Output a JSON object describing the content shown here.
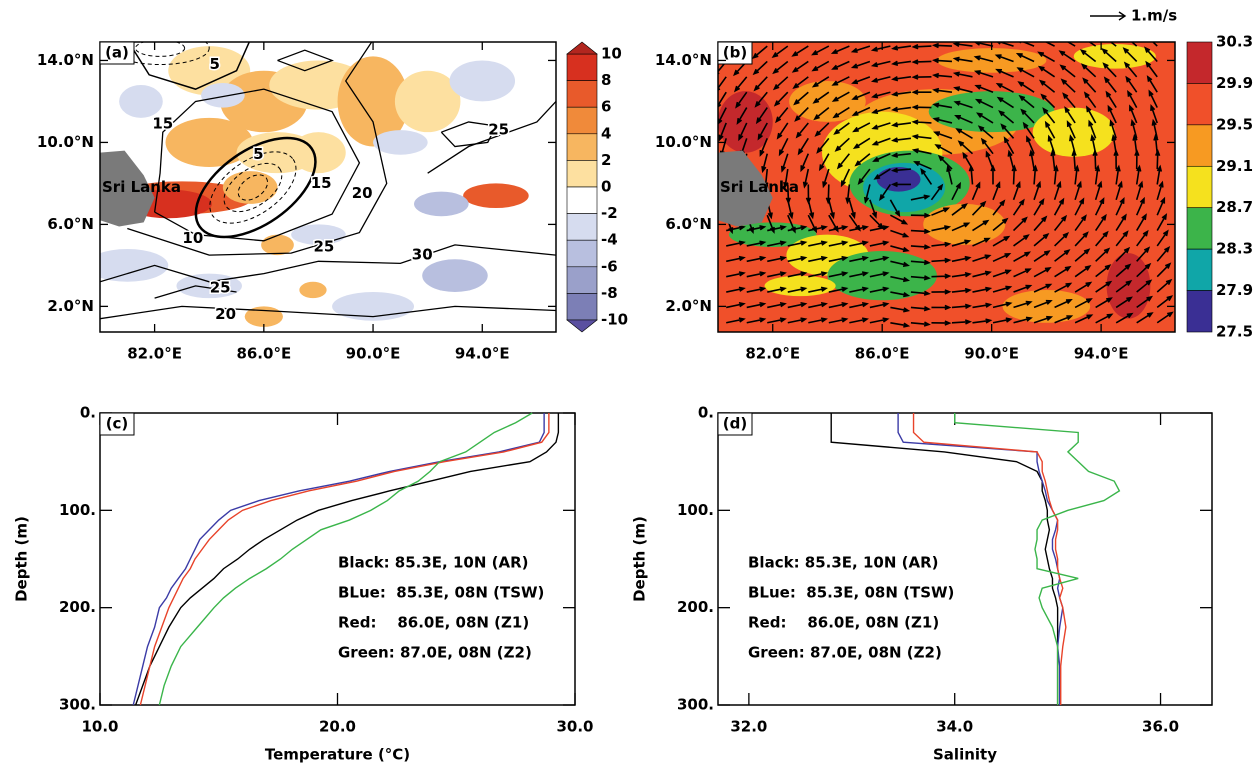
{
  "chart_data": [
    {
      "type": "map",
      "panel_label": "(a)",
      "annotation": "Sri Lanka",
      "xlim": [
        80,
        96.7
      ],
      "ylim": [
        0.75,
        14.9
      ],
      "xticks": [
        {
          "value": 82,
          "label": "82.0°E"
        },
        {
          "value": 86,
          "label": "86.0°E"
        },
        {
          "value": 90,
          "label": "90.0°E"
        },
        {
          "value": 94,
          "label": "94.0°E"
        }
      ],
      "yticks": [
        {
          "value": 2,
          "label": "2.0°N"
        },
        {
          "value": 6,
          "label": "6.0°N"
        },
        {
          "value": 10,
          "label": "10.0°N"
        },
        {
          "value": 14,
          "label": "14.0°N"
        }
      ],
      "contour_labels": [
        5,
        5,
        15,
        10,
        15,
        20,
        25,
        25,
        30,
        20,
        25
      ],
      "colorbar": {
        "levels": [
          10,
          8,
          6,
          4,
          2,
          0,
          -2,
          -4,
          -6,
          -8,
          -10
        ],
        "colors": [
          "#b2261f",
          "#d7301f",
          "#e85a2b",
          "#f08a3a",
          "#f7b660",
          "#fde0a0",
          "#ffffff",
          "#d6dcef",
          "#b8bfdf",
          "#9aa0ca",
          "#7c7fb6",
          "#5a4fa0"
        ]
      }
    },
    {
      "type": "map",
      "panel_label": "(b)",
      "annotation": "Sri Lanka",
      "vector_label": "1.m/s",
      "xlim": [
        80,
        96.7
      ],
      "ylim": [
        0.75,
        14.9
      ],
      "xticks": [
        {
          "value": 82,
          "label": "82.0°E"
        },
        {
          "value": 86,
          "label": "86.0°E"
        },
        {
          "value": 90,
          "label": "90.0°E"
        },
        {
          "value": 94,
          "label": "94.0°E"
        }
      ],
      "yticks": [
        {
          "value": 2,
          "label": "2.0°N"
        },
        {
          "value": 6,
          "label": "6.0°N"
        },
        {
          "value": 10,
          "label": "10.0°N"
        },
        {
          "value": 14,
          "label": "14.0°N"
        }
      ],
      "colorbar": {
        "levels": [
          30.3,
          29.9,
          29.5,
          29.1,
          28.7,
          28.3,
          27.9,
          27.5
        ],
        "colors": [
          "#c4282c",
          "#f0502a",
          "#f79a22",
          "#f5e11e",
          "#3cb44a",
          "#10a6a8",
          "#3a2f94"
        ]
      }
    },
    {
      "type": "line",
      "panel_label": "(c)",
      "x_label": "Temperature (°C)",
      "y_label": "Depth (m)",
      "xlim": [
        10,
        30
      ],
      "ylim": [
        300,
        0
      ],
      "xticks": [
        {
          "value": 10,
          "label": "10.0"
        },
        {
          "value": 20,
          "label": "20.0"
        },
        {
          "value": 30,
          "label": "30.0"
        }
      ],
      "yticks": [
        {
          "value": 0,
          "label": "0."
        },
        {
          "value": 100,
          "label": "100."
        },
        {
          "value": 200,
          "label": "200."
        },
        {
          "value": 300,
          "label": "300."
        }
      ],
      "y": [
        0,
        10,
        20,
        30,
        40,
        50,
        60,
        70,
        80,
        90,
        100,
        110,
        120,
        130,
        140,
        150,
        160,
        170,
        180,
        190,
        200,
        220,
        240,
        260,
        280,
        300
      ],
      "series": [
        {
          "name": "Black: 85.3E, 10N (AR)",
          "color": "#000000",
          "values": [
            29.3,
            29.3,
            29.3,
            29.2,
            28.8,
            28.1,
            25.6,
            23.9,
            22.2,
            20.6,
            19.2,
            18.3,
            17.6,
            16.9,
            16.3,
            15.8,
            15.2,
            14.8,
            14.3,
            13.8,
            13.4,
            12.9,
            12.5,
            12.1,
            11.8,
            11.5
          ]
        },
        {
          "name": "BLue:  85.3E, 08N (TSW)",
          "color": "#3b3ba6",
          "values": [
            28.7,
            28.7,
            28.7,
            28.5,
            26.8,
            24.3,
            22.2,
            20.5,
            18.4,
            16.7,
            15.5,
            15.0,
            14.6,
            14.2,
            14.0,
            13.8,
            13.6,
            13.3,
            13.0,
            12.8,
            12.5,
            12.3,
            12.0,
            11.8,
            11.6,
            11.4
          ]
        },
        {
          "name": "Red:    86.0E, 08N (Z1)",
          "color": "#e8432a",
          "values": [
            28.9,
            28.9,
            28.9,
            28.6,
            27.0,
            24.5,
            22.4,
            20.8,
            18.8,
            17.2,
            16.0,
            15.4,
            15.0,
            14.6,
            14.3,
            14.0,
            13.8,
            13.5,
            13.3,
            13.1,
            12.9,
            12.6,
            12.3,
            12.1,
            11.9,
            11.7
          ]
        },
        {
          "name": "Green: 87.0E, 08N (Z2)",
          "color": "#3ab54a",
          "values": [
            28.2,
            27.5,
            26.6,
            26.0,
            25.4,
            24.3,
            23.9,
            23.4,
            22.6,
            22.1,
            21.4,
            20.5,
            19.3,
            18.7,
            18.1,
            17.6,
            17.0,
            16.3,
            15.7,
            15.2,
            14.8,
            14.1,
            13.4,
            13.0,
            12.7,
            12.5
          ]
        }
      ]
    },
    {
      "type": "line",
      "panel_label": "(d)",
      "x_label": "Salinity",
      "y_label": "Depth (m)",
      "xlim": [
        31.7,
        36.5
      ],
      "ylim": [
        300,
        0
      ],
      "xticks": [
        {
          "value": 32,
          "label": "32.0"
        },
        {
          "value": 34,
          "label": "34.0"
        },
        {
          "value": 36,
          "label": "36.0"
        }
      ],
      "yticks": [
        {
          "value": 0,
          "label": "0."
        },
        {
          "value": 100,
          "label": "100."
        },
        {
          "value": 200,
          "label": "200."
        },
        {
          "value": 300,
          "label": "300."
        }
      ],
      "y": [
        0,
        10,
        20,
        30,
        40,
        50,
        60,
        70,
        80,
        90,
        100,
        110,
        120,
        130,
        140,
        150,
        160,
        170,
        180,
        190,
        200,
        220,
        240,
        260,
        280,
        300
      ],
      "series": [
        {
          "name": "Black: 85.3E, 10N (AR)",
          "color": "#000000",
          "values": [
            32.8,
            32.8,
            32.8,
            32.8,
            33.9,
            34.6,
            34.8,
            34.85,
            34.85,
            34.88,
            34.9,
            34.9,
            34.92,
            34.9,
            34.88,
            34.9,
            34.92,
            34.95,
            34.95,
            34.98,
            35.0,
            35.0,
            35.0,
            35.0,
            35.0,
            35.0
          ]
        },
        {
          "name": "BLue:  85.3E, 08N (TSW)",
          "color": "#3b3ba6",
          "values": [
            33.45,
            33.45,
            33.45,
            33.5,
            34.8,
            34.8,
            34.82,
            34.85,
            34.88,
            34.9,
            34.95,
            35.0,
            34.98,
            34.95,
            34.95,
            34.98,
            35.0,
            35.02,
            35.0,
            35.02,
            35.05,
            35.02,
            35.0,
            35.02,
            35.02,
            35.02
          ]
        },
        {
          "name": "Red:    86.0E, 08N (Z1)",
          "color": "#e8432a",
          "values": [
            33.6,
            33.6,
            33.6,
            33.7,
            34.8,
            34.85,
            34.85,
            34.88,
            34.9,
            34.92,
            34.95,
            35.0,
            35.0,
            34.98,
            34.98,
            35.0,
            35.0,
            35.02,
            35.05,
            35.02,
            35.05,
            35.08,
            35.05,
            35.03,
            35.03,
            35.03
          ]
        },
        {
          "name": "Green: 87.0E, 08N (Z2)",
          "color": "#3ab54a",
          "values": [
            34.0,
            34.0,
            35.2,
            35.2,
            35.1,
            35.2,
            35.3,
            35.55,
            35.6,
            35.45,
            35.1,
            34.85,
            34.8,
            34.8,
            34.78,
            34.8,
            34.8,
            35.2,
            34.85,
            34.82,
            34.85,
            34.95,
            35.0,
            35.0,
            35.0,
            35.0
          ]
        }
      ]
    }
  ]
}
